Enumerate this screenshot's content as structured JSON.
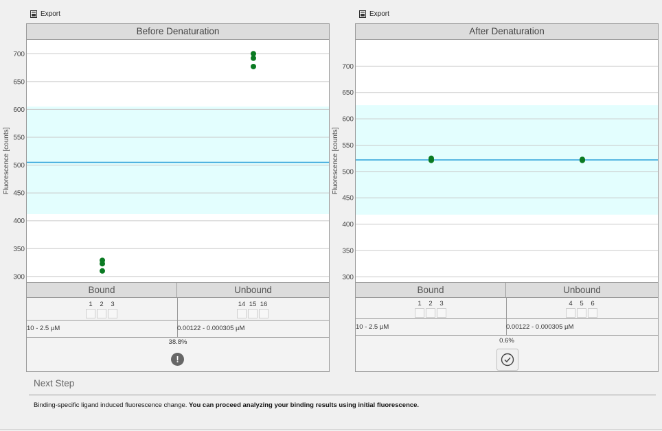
{
  "export_label": "Export",
  "panels": [
    {
      "title": "Before Denaturation",
      "chart_data": {
        "type": "scatter",
        "title": "Before Denaturation",
        "ylabel": "Fluorescence [counts]",
        "ylim": [
          290,
          725
        ],
        "yticks": [
          300,
          350,
          400,
          450,
          500,
          550,
          600,
          650,
          700
        ],
        "grid": true,
        "band": [
          412,
          605
        ],
        "mean_line": 505,
        "groups": [
          {
            "name": "Bound",
            "points": [
              329,
              323,
              310
            ]
          },
          {
            "name": "Unbound",
            "points": [
              700,
              692,
              677
            ]
          }
        ],
        "point_color": "#0a7a22"
      },
      "table": {
        "bound_header": "Bound",
        "unbound_header": "Unbound",
        "bound_wells": [
          "1",
          "2",
          "3"
        ],
        "unbound_wells": [
          "14",
          "15",
          "16"
        ],
        "bound_range": "10 - 2.5 µM",
        "unbound_range": "0.00122 - 0.000305 µM",
        "percent": "38.8%",
        "status": "warning",
        "status_icon": "exclamation-icon"
      }
    },
    {
      "title": "After Denaturation",
      "chart_data": {
        "type": "scatter",
        "title": "After Denaturation",
        "ylabel": "Fluorescence [counts]",
        "ylim": [
          290,
          750
        ],
        "yticks": [
          300,
          350,
          400,
          450,
          500,
          550,
          600,
          650,
          700
        ],
        "grid": true,
        "band": [
          418,
          626
        ],
        "mean_line": 522,
        "groups": [
          {
            "name": "Bound",
            "points": [
              525,
              522,
              521
            ]
          },
          {
            "name": "Unbound",
            "points": [
              522,
              521,
              523
            ]
          }
        ],
        "point_color": "#0a7a22"
      },
      "table": {
        "bound_header": "Bound",
        "unbound_header": "Unbound",
        "bound_wells": [
          "1",
          "2",
          "3"
        ],
        "unbound_wells": [
          "4",
          "5",
          "6"
        ],
        "bound_range": "10 - 2.5 µM",
        "unbound_range": "0.00122 - 0.000305 µM",
        "percent": "0.6%",
        "status": "ok",
        "status_icon": "checkmark-icon"
      }
    }
  ],
  "next_step": {
    "title": "Next Step",
    "message_plain": "Binding-specific ligand induced fluorescence change. ",
    "message_bold": "You can proceed analyzing your binding results using initial fluorescence."
  }
}
